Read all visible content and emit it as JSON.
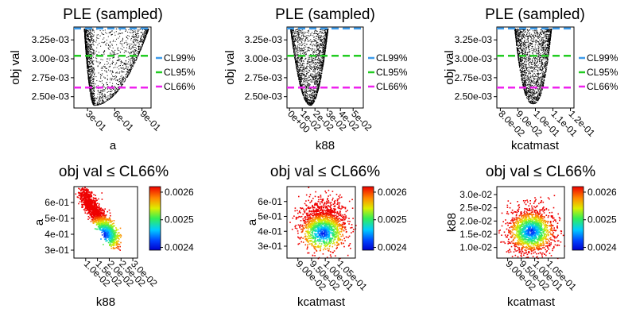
{
  "figure": {
    "top_title": "PLE (sampled)",
    "bottom_title": "obj val ≤ CL66%",
    "y_label": "obj val"
  },
  "chart_data": [
    {
      "type": "scatter",
      "title": "PLE (sampled)",
      "xlabel": "a",
      "ylabel": "obj val",
      "xlim": [
        0.15,
        1.0
      ],
      "ylim": [
        0.00235,
        0.00342
      ],
      "x_ticks": [
        0.3,
        0.6,
        0.9
      ],
      "x_tick_labels": [
        "3e-01",
        "6e-01",
        "9e-01"
      ],
      "y_ticks": [
        0.0025,
        0.00275,
        0.003,
        0.00325
      ],
      "y_tick_labels": [
        "2.50e-03",
        "2.75e-03",
        "3.00e-03",
        "3.25e-03"
      ],
      "profile": {
        "x_min": 0.37,
        "y_min": 0.00239,
        "left_x": 0.26,
        "right_x": 0.97,
        "y_edge": 0.0034
      },
      "thresholds": [
        {
          "name": "CL99%",
          "value": 0.0034,
          "color": "#3c9bea"
        },
        {
          "name": "CL95%",
          "value": 0.00304,
          "color": "#22cc22"
        },
        {
          "name": "CL66%",
          "value": 0.00262,
          "color": "#ee22ee"
        }
      ],
      "grid": false
    },
    {
      "type": "scatter",
      "title": "PLE (sampled)",
      "xlabel": "k88",
      "ylabel": "obj val",
      "xlim": [
        -0.002,
        0.058
      ],
      "ylim": [
        0.00235,
        0.00342
      ],
      "x_ticks": [
        0.0,
        0.01,
        0.02,
        0.03,
        0.04,
        0.05
      ],
      "x_tick_labels": [
        "0e+00",
        "1e-02",
        "2e-02",
        "3e-02",
        "4e-02",
        "5e-02"
      ],
      "y_ticks": [
        0.0025,
        0.00275,
        0.003,
        0.00325
      ],
      "y_tick_labels": [
        "2.50e-03",
        "2.75e-03",
        "3.00e-03",
        "3.25e-03"
      ],
      "profile": {
        "x_min": 0.016,
        "y_min": 0.00239,
        "left_x": 0.0005,
        "right_x": 0.03,
        "y_edge": 0.0034
      },
      "thresholds": [
        {
          "name": "CL99%",
          "value": 0.0034,
          "color": "#3c9bea"
        },
        {
          "name": "CL95%",
          "value": 0.00304,
          "color": "#22cc22"
        },
        {
          "name": "CL66%",
          "value": 0.00262,
          "color": "#ee22ee"
        }
      ],
      "grid": false
    },
    {
      "type": "scatter",
      "title": "PLE (sampled)",
      "xlabel": "kcatmast",
      "ylabel": "obj val",
      "xlim": [
        0.078,
        0.122
      ],
      "ylim": [
        0.00235,
        0.00342
      ],
      "x_ticks": [
        0.08,
        0.09,
        0.1,
        0.11,
        0.12
      ],
      "x_tick_labels": [
        "8.0e-02",
        "9.0e-02",
        "1.0e-01",
        "1.1e-01",
        "1.2e-01"
      ],
      "y_ticks": [
        0.0025,
        0.00275,
        0.003,
        0.00325
      ],
      "y_tick_labels": [
        "2.50e-03",
        "2.75e-03",
        "3.00e-03",
        "3.25e-03"
      ],
      "profile": {
        "x_min": 0.0985,
        "y_min": 0.00241,
        "left_x": 0.088,
        "right_x": 0.109,
        "y_edge": 0.0034
      },
      "thresholds": [
        {
          "name": "CL99%",
          "value": 0.0034,
          "color": "#3c9bea"
        },
        {
          "name": "CL95%",
          "value": 0.00304,
          "color": "#22cc22"
        },
        {
          "name": "CL66%",
          "value": 0.00262,
          "color": "#ee22ee"
        }
      ],
      "grid": false
    },
    {
      "type": "scatter",
      "title": "obj val ≤ CL66%",
      "xlabel": "k88",
      "ylabel": "a",
      "xlim": [
        0.005,
        0.032
      ],
      "ylim": [
        0.25,
        0.7
      ],
      "x_ticks": [
        0.01,
        0.015,
        0.02,
        0.025,
        0.03
      ],
      "x_tick_labels": [
        "1.0e-02",
        "1.5e-02",
        "2.0e-02",
        "2.5e-02",
        "3.0e-02"
      ],
      "y_ticks": [
        0.3,
        0.4,
        0.5,
        0.6
      ],
      "y_tick_labels": [
        "3e-01",
        "4e-01",
        "5e-01",
        "6e-01"
      ],
      "cloud": {
        "x_center": 0.0155,
        "y_center": 0.44,
        "min_x": 0.0175,
        "min_y": 0.4
      },
      "colorbar": {
        "min": 0.00239,
        "max": 0.00262,
        "ticks": [
          0.0024,
          0.0025,
          0.0026
        ],
        "tick_labels": [
          "0.0024",
          "0.0025",
          "0.0026"
        ]
      },
      "grid": false
    },
    {
      "type": "scatter",
      "title": "obj val ≤ CL66%",
      "xlabel": "kcatmast",
      "ylabel": "a",
      "xlim": [
        0.086,
        0.111
      ],
      "ylim": [
        0.22,
        0.7
      ],
      "x_ticks": [
        0.09,
        0.095,
        0.1,
        0.105
      ],
      "x_tick_labels": [
        "9.00e-02",
        "9.50e-02",
        "1.00e-01",
        "1.05e-01"
      ],
      "y_ticks": [
        0.3,
        0.4,
        0.5,
        0.6
      ],
      "y_tick_labels": [
        "3e-01",
        "4e-01",
        "5e-01",
        "6e-01"
      ],
      "cloud": {
        "x_center": 0.099,
        "y_center": 0.45,
        "min_x": 0.099,
        "min_y": 0.39
      },
      "colorbar": {
        "min": 0.00239,
        "max": 0.00262,
        "ticks": [
          0.0024,
          0.0025,
          0.0026
        ],
        "tick_labels": [
          "0.0024",
          "0.0025",
          "0.0026"
        ]
      },
      "grid": false
    },
    {
      "type": "scatter",
      "title": "obj val ≤ CL66%",
      "xlabel": "kcatmast",
      "ylabel": "k88",
      "xlim": [
        0.086,
        0.111
      ],
      "ylim": [
        0.006,
        0.033
      ],
      "x_ticks": [
        0.09,
        0.095,
        0.1,
        0.105
      ],
      "x_tick_labels": [
        "9.00e-02",
        "9.50e-02",
        "1.00e-01",
        "1.05e-01"
      ],
      "y_ticks": [
        0.01,
        0.015,
        0.02,
        0.025,
        0.03
      ],
      "y_tick_labels": [
        "1.0e-02",
        "1.5e-02",
        "2.0e-02",
        "2.5e-02",
        "3.0e-02"
      ],
      "cloud": {
        "x_center": 0.0985,
        "y_center": 0.0165,
        "min_x": 0.0985,
        "min_y": 0.0162
      },
      "colorbar": {
        "min": 0.00239,
        "max": 0.00262,
        "ticks": [
          0.0024,
          0.0025,
          0.0026
        ],
        "tick_labels": [
          "0.0024",
          "0.0025",
          "0.0026"
        ]
      },
      "grid": false
    }
  ]
}
